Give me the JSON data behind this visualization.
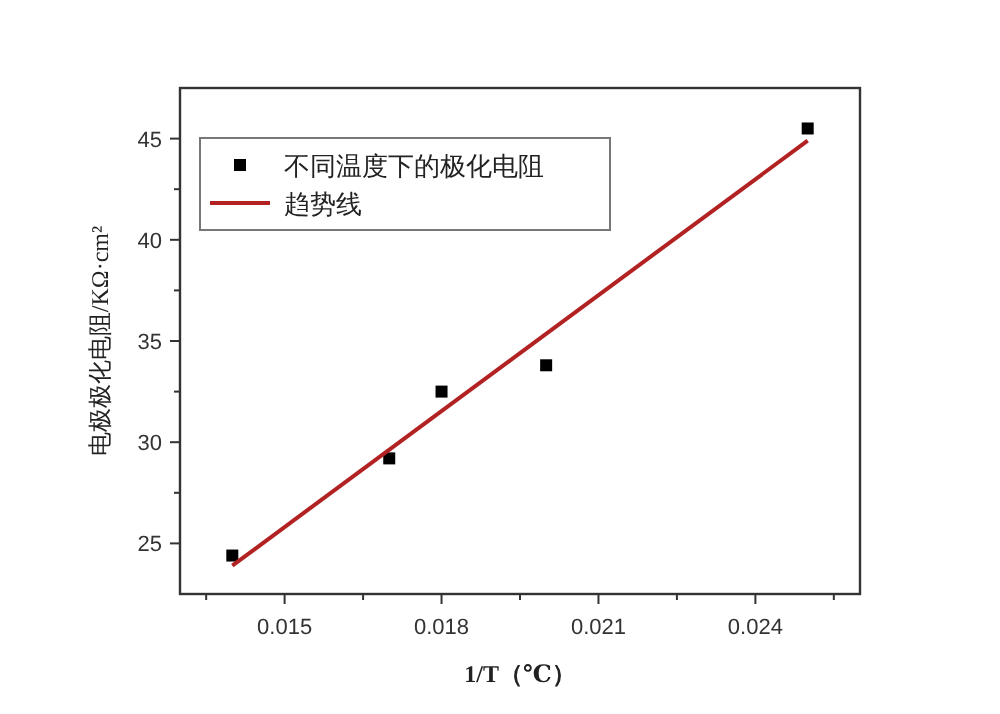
{
  "chart_data": {
    "type": "scatter",
    "xlabel": "1/T（℃）",
    "ylabel": "电极极化电阻/KΩ·cm²",
    "xlim": [
      0.013,
      0.026
    ],
    "ylim": [
      22.5,
      47.5
    ],
    "xticks": [
      {
        "value": 0.0135,
        "label": null
      },
      0.015,
      {
        "value": 0.0165,
        "label": null
      },
      0.018,
      {
        "value": 0.0195,
        "label": null
      },
      0.021,
      {
        "value": 0.0225,
        "label": null
      },
      0.024,
      {
        "value": 0.0255,
        "label": null
      }
    ],
    "yticks": [
      25,
      {
        "value": 27.5,
        "label": null
      },
      30,
      {
        "value": 32.5,
        "label": null
      },
      35,
      {
        "value": 37.5,
        "label": null
      },
      40,
      {
        "value": 42.5,
        "label": null
      },
      45
    ],
    "series": [
      {
        "name": "不同温度下的极化电阻",
        "marker": "square",
        "color": "#000000",
        "x": [
          0.014,
          0.017,
          0.018,
          0.02,
          0.025
        ],
        "values": [
          24.4,
          29.2,
          32.5,
          33.8,
          45.5
        ]
      },
      {
        "name": "趋势线",
        "type": "line",
        "color": "#b22222",
        "x": [
          0.014,
          0.025
        ],
        "values": [
          23.9,
          44.9
        ]
      }
    ],
    "legend": "top left",
    "grid": false
  }
}
